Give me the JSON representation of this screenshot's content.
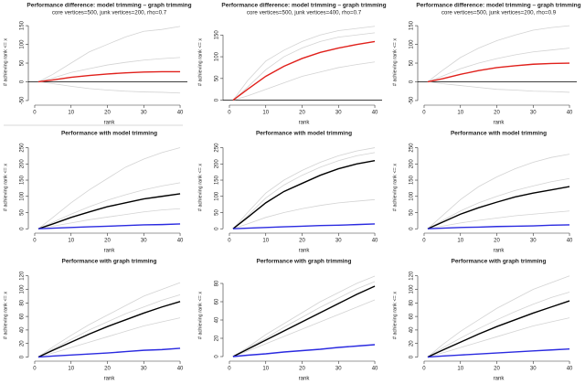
{
  "chart_data": [
    {
      "type": "line",
      "title": "Performance difference: model trimming – graph trimming",
      "subtitle": "core vertices=500, junk vertices=200, rho=0.7",
      "xlabel": "rank",
      "ylabel": "# achieving rank <= x",
      "hline": 0,
      "x": [
        1,
        5,
        10,
        15,
        20,
        25,
        30,
        35,
        40
      ],
      "xlim": [
        -1,
        42
      ],
      "xticks": [
        0,
        10,
        20,
        30,
        40
      ],
      "ylim": [
        -55,
        160
      ],
      "yticks": [
        -50,
        0,
        50,
        100,
        150
      ],
      "series": [
        {
          "color": "#d3d3d3",
          "values": [
            0,
            20,
            50,
            80,
            100,
            120,
            135,
            140,
            148
          ]
        },
        {
          "color": "#d3d3d3",
          "values": [
            0,
            -5,
            -12,
            -18,
            -22,
            -25,
            -27,
            -28,
            -30
          ]
        },
        {
          "color": "#d3d3d3",
          "values": [
            0,
            10,
            25,
            35,
            45,
            52,
            58,
            62,
            65
          ]
        },
        {
          "color": "#e0201b",
          "values": [
            0,
            5,
            12,
            17,
            21,
            24,
            26,
            27,
            27
          ]
        }
      ]
    },
    {
      "type": "line",
      "title": "Performance difference: model trimming – graph trimming",
      "subtitle": "core vertices=500, junk vertices=400, rho=0.7",
      "xlabel": "rank",
      "ylabel": "# achieving rank <= x",
      "hline": 0,
      "x": [
        1,
        5,
        10,
        15,
        20,
        25,
        30,
        35,
        40
      ],
      "xlim": [
        -1,
        42
      ],
      "xticks": [
        0,
        10,
        20,
        30,
        40
      ],
      "ylim": [
        -5,
        180
      ],
      "yticks": [
        0,
        50,
        100,
        150
      ],
      "series": [
        {
          "color": "#d3d3d3",
          "values": [
            0,
            45,
            90,
            115,
            135,
            150,
            160,
            165,
            170
          ]
        },
        {
          "color": "#d3d3d3",
          "values": [
            0,
            10,
            25,
            40,
            55,
            65,
            75,
            82,
            88
          ]
        },
        {
          "color": "#d3d3d3",
          "values": [
            0,
            30,
            70,
            100,
            120,
            135,
            145,
            150,
            155
          ]
        },
        {
          "color": "#e0201b",
          "values": [
            0,
            25,
            55,
            78,
            96,
            110,
            120,
            128,
            135
          ]
        }
      ]
    },
    {
      "type": "line",
      "title": "Performance difference: model trimming – graph trimming",
      "subtitle": "core vertices=500, junk vertices=200, rho=0.9",
      "xlabel": "rank",
      "ylabel": "# achieving rank <= x",
      "hline": 0,
      "x": [
        1,
        5,
        10,
        15,
        20,
        25,
        30,
        35,
        40
      ],
      "xlim": [
        -1,
        42
      ],
      "xticks": [
        0,
        10,
        20,
        30,
        40
      ],
      "ylim": [
        -55,
        160
      ],
      "yticks": [
        -50,
        0,
        50,
        100,
        150
      ],
      "series": [
        {
          "color": "#d3d3d3",
          "values": [
            0,
            30,
            65,
            90,
            110,
            125,
            138,
            145,
            150
          ]
        },
        {
          "color": "#d3d3d3",
          "values": [
            0,
            -5,
            -10,
            -15,
            -20,
            -22,
            -25,
            -26,
            -28
          ]
        },
        {
          "color": "#d3d3d3",
          "values": [
            0,
            15,
            35,
            50,
            62,
            72,
            80,
            85,
            90
          ]
        },
        {
          "color": "#e0201b",
          "values": [
            0,
            8,
            20,
            30,
            38,
            43,
            47,
            49,
            50
          ]
        }
      ]
    },
    {
      "type": "line",
      "title": "Performance with model trimming",
      "xlabel": "rank",
      "ylabel": "# achieving rank <= x",
      "x": [
        1,
        5,
        10,
        15,
        20,
        25,
        30,
        35,
        40
      ],
      "xlim": [
        -1,
        42
      ],
      "xticks": [
        0,
        10,
        20,
        30,
        40
      ],
      "ylim": [
        -5,
        260
      ],
      "yticks": [
        0,
        50,
        100,
        150,
        200,
        250
      ],
      "series": [
        {
          "color": "#d3d3d3",
          "values": [
            0,
            35,
            80,
            120,
            155,
            190,
            215,
            235,
            250
          ]
        },
        {
          "color": "#d3d3d3",
          "values": [
            0,
            8,
            18,
            28,
            36,
            44,
            52,
            58,
            62
          ]
        },
        {
          "color": "#d3d3d3",
          "values": [
            0,
            20,
            45,
            68,
            88,
            105,
            120,
            132,
            142
          ]
        },
        {
          "color": "#000000",
          "values": [
            0,
            15,
            35,
            52,
            68,
            80,
            92,
            100,
            108
          ]
        },
        {
          "color": "#2a2ae0",
          "values": [
            0,
            2,
            4,
            6,
            8,
            10,
            12,
            13,
            15
          ]
        }
      ]
    },
    {
      "type": "line",
      "title": "Performance with model trimming",
      "xlabel": "rank",
      "ylabel": "# achieving rank <= x",
      "x": [
        1,
        5,
        10,
        15,
        20,
        25,
        30,
        35,
        40
      ],
      "xlim": [
        -1,
        42
      ],
      "xticks": [
        0,
        10,
        20,
        30,
        40
      ],
      "ylim": [
        -5,
        260
      ],
      "yticks": [
        0,
        50,
        100,
        150,
        200,
        250
      ],
      "series": [
        {
          "color": "#d3d3d3",
          "values": [
            0,
            50,
            110,
            150,
            180,
            205,
            225,
            240,
            250
          ]
        },
        {
          "color": "#d3d3d3",
          "values": [
            0,
            15,
            35,
            50,
            62,
            72,
            80,
            85,
            90
          ]
        },
        {
          "color": "#d3d3d3",
          "values": [
            0,
            40,
            95,
            135,
            165,
            190,
            210,
            225,
            235
          ]
        },
        {
          "color": "#000000",
          "values": [
            0,
            35,
            80,
            115,
            140,
            165,
            185,
            200,
            210
          ]
        },
        {
          "color": "#2a2ae0",
          "values": [
            0,
            2,
            4,
            6,
            8,
            10,
            11,
            13,
            15
          ]
        }
      ]
    },
    {
      "type": "line",
      "title": "Performance with model trimming",
      "xlabel": "rank",
      "ylabel": "# achieving rank <= x",
      "x": [
        1,
        5,
        10,
        15,
        20,
        25,
        30,
        35,
        40
      ],
      "xlim": [
        -1,
        42
      ],
      "xticks": [
        0,
        10,
        20,
        30,
        40
      ],
      "ylim": [
        -5,
        260
      ],
      "yticks": [
        0,
        50,
        100,
        150,
        200,
        250
      ],
      "series": [
        {
          "color": "#d3d3d3",
          "values": [
            0,
            40,
            90,
            130,
            160,
            185,
            205,
            220,
            230
          ]
        },
        {
          "color": "#d3d3d3",
          "values": [
            0,
            8,
            18,
            26,
            33,
            40,
            45,
            50,
            55
          ]
        },
        {
          "color": "#d3d3d3",
          "values": [
            0,
            25,
            55,
            80,
            100,
            118,
            132,
            145,
            155
          ]
        },
        {
          "color": "#000000",
          "values": [
            0,
            20,
            45,
            65,
            82,
            98,
            110,
            120,
            130
          ]
        },
        {
          "color": "#2a2ae0",
          "values": [
            0,
            2,
            4,
            5,
            7,
            8,
            9,
            11,
            12
          ]
        }
      ]
    },
    {
      "type": "line",
      "title": "Performance with graph trimming",
      "xlabel": "rank",
      "ylabel": "# achieving rank <= x",
      "x": [
        1,
        5,
        10,
        15,
        20,
        25,
        30,
        35,
        40
      ],
      "xlim": [
        -1,
        42
      ],
      "xticks": [
        0,
        10,
        20,
        30,
        40
      ],
      "ylim": [
        -2,
        125
      ],
      "yticks": [
        0,
        20,
        40,
        60,
        80,
        100,
        120
      ],
      "series": [
        {
          "color": "#d3d3d3",
          "values": [
            0,
            15,
            32,
            48,
            62,
            76,
            90,
            100,
            110
          ]
        },
        {
          "color": "#d3d3d3",
          "values": [
            0,
            6,
            14,
            22,
            30,
            38,
            46,
            52,
            58
          ]
        },
        {
          "color": "#d3d3d3",
          "values": [
            0,
            12,
            26,
            40,
            52,
            64,
            74,
            84,
            92
          ]
        },
        {
          "color": "#000000",
          "values": [
            0,
            10,
            22,
            34,
            45,
            55,
            65,
            74,
            82
          ]
        },
        {
          "color": "#2a2ae0",
          "values": [
            0,
            1.5,
            3,
            4.5,
            6,
            8,
            10,
            11,
            13
          ]
        }
      ]
    },
    {
      "type": "line",
      "title": "Performance with graph trimming",
      "xlabel": "rank",
      "ylabel": "# achieving rank <= x",
      "x": [
        1,
        5,
        10,
        15,
        20,
        25,
        30,
        35,
        40
      ],
      "xlim": [
        -1,
        42
      ],
      "xticks": [
        0,
        10,
        20,
        30,
        40
      ],
      "ylim": [
        -2,
        92
      ],
      "yticks": [
        0,
        20,
        40,
        60,
        80
      ],
      "series": [
        {
          "color": "#d3d3d3",
          "values": [
            0,
            10,
            24,
            36,
            48,
            60,
            70,
            80,
            88
          ]
        },
        {
          "color": "#d3d3d3",
          "values": [
            0,
            6,
            14,
            22,
            30,
            38,
            46,
            54,
            62
          ]
        },
        {
          "color": "#d3d3d3",
          "values": [
            0,
            9,
            20,
            32,
            43,
            54,
            64,
            74,
            82
          ]
        },
        {
          "color": "#000000",
          "values": [
            0,
            8,
            18,
            28,
            38,
            48,
            58,
            68,
            77
          ]
        },
        {
          "color": "#2a2ae0",
          "values": [
            0,
            1.5,
            3,
            5,
            6.5,
            8,
            10,
            11.5,
            13
          ]
        }
      ]
    },
    {
      "type": "line",
      "title": "Performance with graph trimming",
      "xlabel": "rank",
      "ylabel": "# achieving rank <= x",
      "x": [
        1,
        5,
        10,
        15,
        20,
        25,
        30,
        35,
        40
      ],
      "xlim": [
        -1,
        42
      ],
      "xticks": [
        0,
        10,
        20,
        30,
        40
      ],
      "ylim": [
        -2,
        125
      ],
      "yticks": [
        0,
        20,
        40,
        60,
        80,
        100,
        120
      ],
      "series": [
        {
          "color": "#d3d3d3",
          "values": [
            0,
            18,
            38,
            55,
            72,
            86,
            100,
            110,
            120
          ]
        },
        {
          "color": "#d3d3d3",
          "values": [
            0,
            6,
            14,
            22,
            30,
            38,
            46,
            52,
            58
          ]
        },
        {
          "color": "#d3d3d3",
          "values": [
            0,
            13,
            28,
            42,
            55,
            67,
            78,
            88,
            96
          ]
        },
        {
          "color": "#000000",
          "values": [
            0,
            10,
            22,
            34,
            45,
            55,
            65,
            74,
            83
          ]
        },
        {
          "color": "#2a2ae0",
          "values": [
            0,
            1.5,
            3,
            4.5,
            6,
            7.5,
            9,
            10.5,
            12
          ]
        }
      ]
    }
  ]
}
